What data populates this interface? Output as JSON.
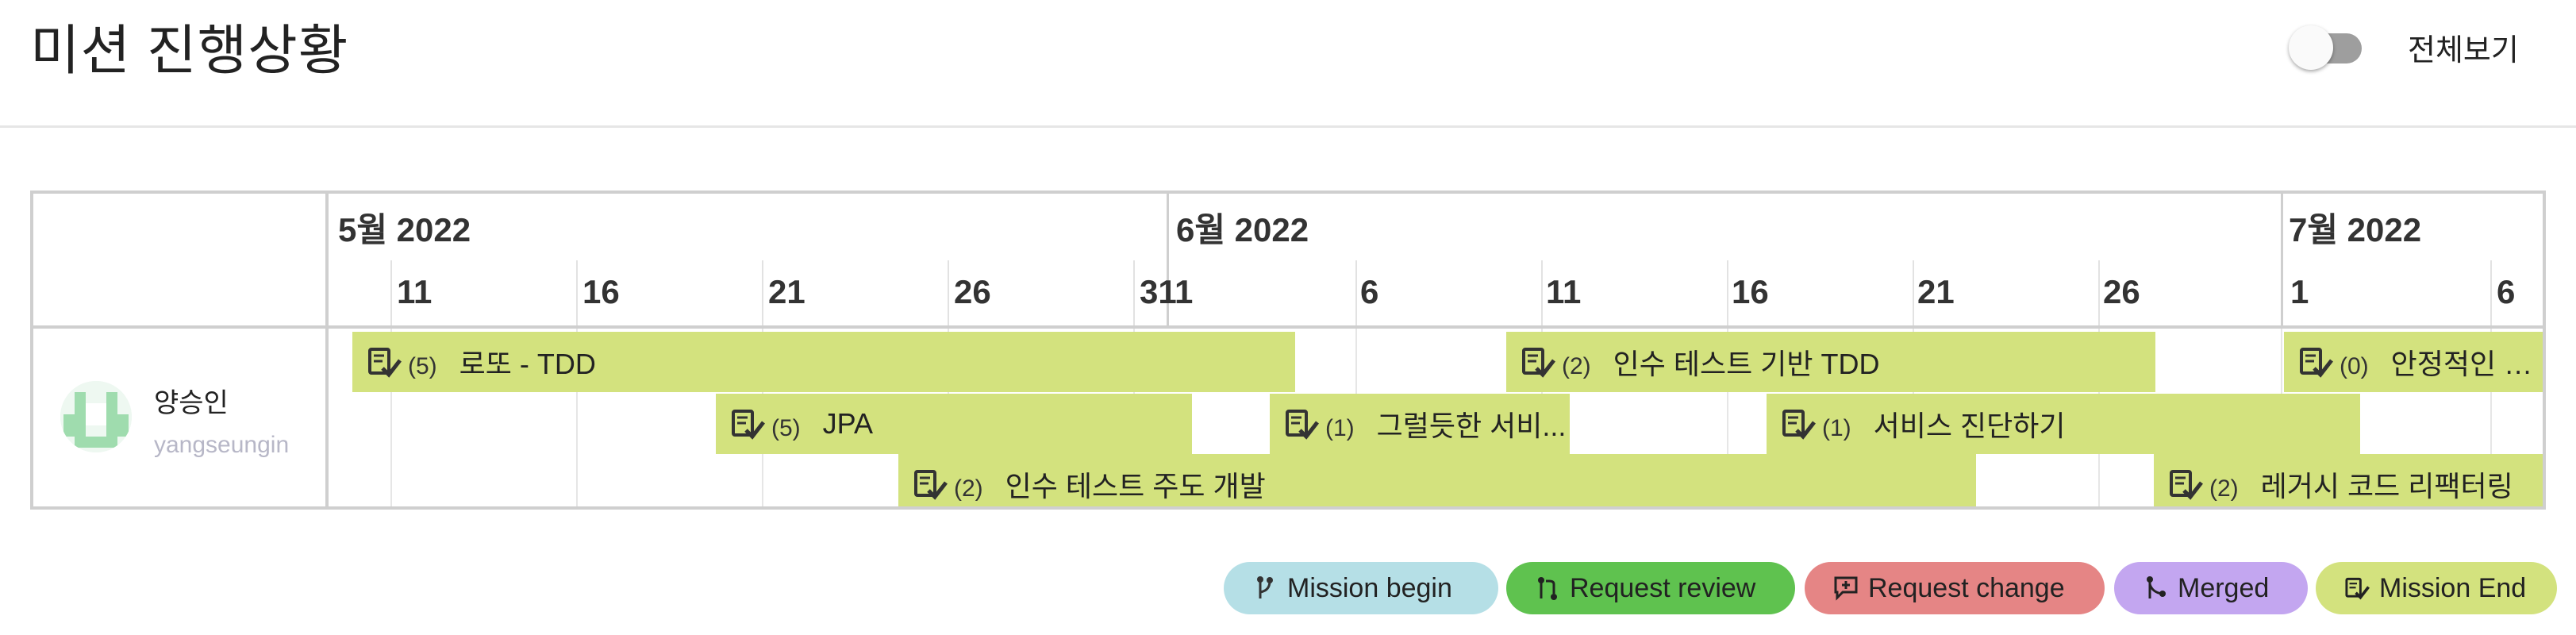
{
  "header": {
    "title": "미션 진행상황",
    "toggle_label": "전체보기",
    "toggle_on": false
  },
  "user": {
    "name": "양승인",
    "id": "yangseungin"
  },
  "timeline": {
    "months": [
      "5월 2022",
      "6월 2022",
      "7월 2022"
    ],
    "days": [
      "11",
      "16",
      "21",
      "26",
      "31",
      "1",
      "6",
      "11",
      "16",
      "21",
      "26",
      "1",
      "6"
    ]
  },
  "missions": [
    {
      "label": "로또 - TDD",
      "count": "(5)",
      "status": "Mission End"
    },
    {
      "label": "JPA",
      "count": "(5)",
      "status": "Mission End"
    },
    {
      "label": "인수 테스트 주도 개발",
      "count": "(2)",
      "status": "Mission End"
    },
    {
      "label": "그럴듯한 서비...",
      "count": "(1)",
      "status": "Mission End"
    },
    {
      "label": "인수 테스트 기반 TDD",
      "count": "(2)",
      "status": "Mission End"
    },
    {
      "label": "서비스 진단하기",
      "count": "(1)",
      "status": "Mission End"
    },
    {
      "label": "레거시 코드 리팩터링",
      "count": "(2)",
      "status": "Mission End"
    },
    {
      "label": "안정적인 서비",
      "count": "(0)",
      "status": "Mission End"
    }
  ],
  "legend": [
    {
      "label": "Mission begin",
      "color": "#b5dfe6",
      "icon": "branch-icon"
    },
    {
      "label": "Request review",
      "color": "#5fc24f",
      "icon": "pull-request-icon"
    },
    {
      "label": "Request change",
      "color": "#e58585",
      "icon": "comment-diff-icon"
    },
    {
      "label": "Merged",
      "color": "#c3a6f0",
      "icon": "merge-icon"
    },
    {
      "label": "Mission End",
      "color": "#d3e27e",
      "icon": "check-clipboard-icon"
    }
  ],
  "colors": {
    "bar": "#d3e27e",
    "border": "#cfcfcf"
  }
}
